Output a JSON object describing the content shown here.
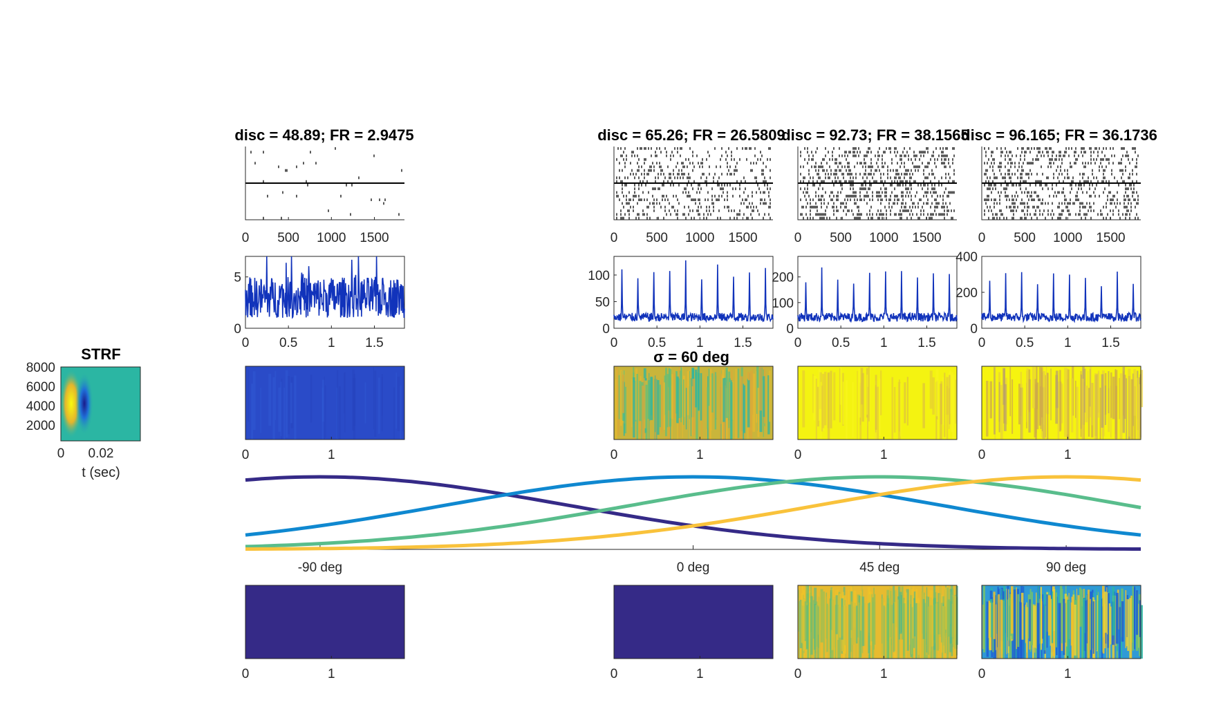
{
  "figure": {
    "background": "#ffffff"
  },
  "strf": {
    "title": "STRF",
    "xlabel": "t (sec)",
    "xticks": [
      "0",
      "0.02"
    ],
    "yticks": [
      "8000",
      "6000",
      "4000",
      "2000"
    ],
    "xlim": [
      0,
      0.035
    ],
    "ylim": [
      500,
      8000
    ]
  },
  "columns": [
    {
      "id": "c1",
      "title": "disc = 48.89; FR = 2.9475",
      "raster_density": 0.012,
      "rate_yticks": [
        "0",
        "5"
      ],
      "rate_ymax": 7,
      "rate_peak": 0,
      "spec_top_style": "dim",
      "spec_bottom_style": "dark"
    },
    {
      "id": "c2",
      "title": "disc = 65.26; FR = 26.5809",
      "raster_density": 0.22,
      "rate_yticks": [
        "0",
        "50",
        "100"
      ],
      "rate_ymax": 135,
      "rate_peak": 130,
      "spec_top_style": "mixed",
      "spec_bottom_style": "dark"
    },
    {
      "id": "c3",
      "title": "disc = 92.73; FR = 38.1565",
      "raster_density": 0.32,
      "rate_yticks": [
        "0",
        "100",
        "200"
      ],
      "rate_ymax": 280,
      "rate_peak": 240,
      "spec_top_style": "bright",
      "spec_bottom_style": "warm"
    },
    {
      "id": "c4",
      "title": "disc = 96.165; FR = 36.1736",
      "raster_density": 0.3,
      "rate_yticks": [
        "0",
        "200",
        "400"
      ],
      "rate_ymax": 400,
      "rate_peak": 330,
      "spec_top_style": "bright_striped",
      "spec_bottom_style": "striped"
    }
  ],
  "raster_xticks": [
    "0",
    "500",
    "1000",
    "1500"
  ],
  "raster_xlim": [
    0,
    1850
  ],
  "rate_xticks": [
    "0",
    "0.5",
    "1",
    "1.5"
  ],
  "rate_xlim": [
    0,
    1.85
  ],
  "spec_xticks": [
    "0",
    "1"
  ],
  "sigma_title": "σ = 60 deg",
  "tuning_chart": {
    "xticks": [
      "-90 deg",
      "0 deg",
      "45 deg",
      "90 deg"
    ],
    "xtick_values": [
      -90,
      0,
      45,
      90
    ],
    "xlim": [
      -108,
      108
    ],
    "sigma_deg": 60
  },
  "chart_data": [
    {
      "type": "heatmap",
      "title": "STRF",
      "xlabel": "t (sec)",
      "ylabel": "",
      "xlim": [
        0,
        0.035
      ],
      "ylim": [
        500,
        8000
      ],
      "description_values": {
        "positive_lobe_t": 0.005,
        "negative_lobe_t": 0.012,
        "center_freq": 4000
      }
    },
    {
      "type": "line",
      "title": "",
      "xlabel": "",
      "ylabel": "",
      "x": [
        -108,
        -90,
        -72,
        -54,
        -36,
        -18,
        0,
        18,
        36,
        54,
        72,
        90,
        108
      ],
      "series": [
        {
          "center": -90,
          "color": "#352a87",
          "values": [
            0.96,
            1.0,
            0.96,
            0.85,
            0.7,
            0.53,
            0.37,
            0.23,
            0.13,
            0.07,
            0.03,
            0.01,
            0.005
          ]
        },
        {
          "center": 0,
          "color": "#0f88d0",
          "values": [
            0.2,
            0.32,
            0.47,
            0.64,
            0.8,
            0.93,
            1.0,
            0.96,
            0.85,
            0.7,
            0.53,
            0.37,
            0.2
          ]
        },
        {
          "center": 45,
          "color": "#59bd8c",
          "values": [
            0.05,
            0.09,
            0.15,
            0.25,
            0.39,
            0.56,
            0.73,
            0.88,
            0.98,
            0.99,
            0.9,
            0.75,
            0.57
          ]
        },
        {
          "center": 90,
          "color": "#f9c23b",
          "values": [
            0.005,
            0.01,
            0.03,
            0.07,
            0.13,
            0.23,
            0.37,
            0.53,
            0.7,
            0.85,
            0.96,
            1.0,
            0.96
          ]
        }
      ]
    }
  ]
}
